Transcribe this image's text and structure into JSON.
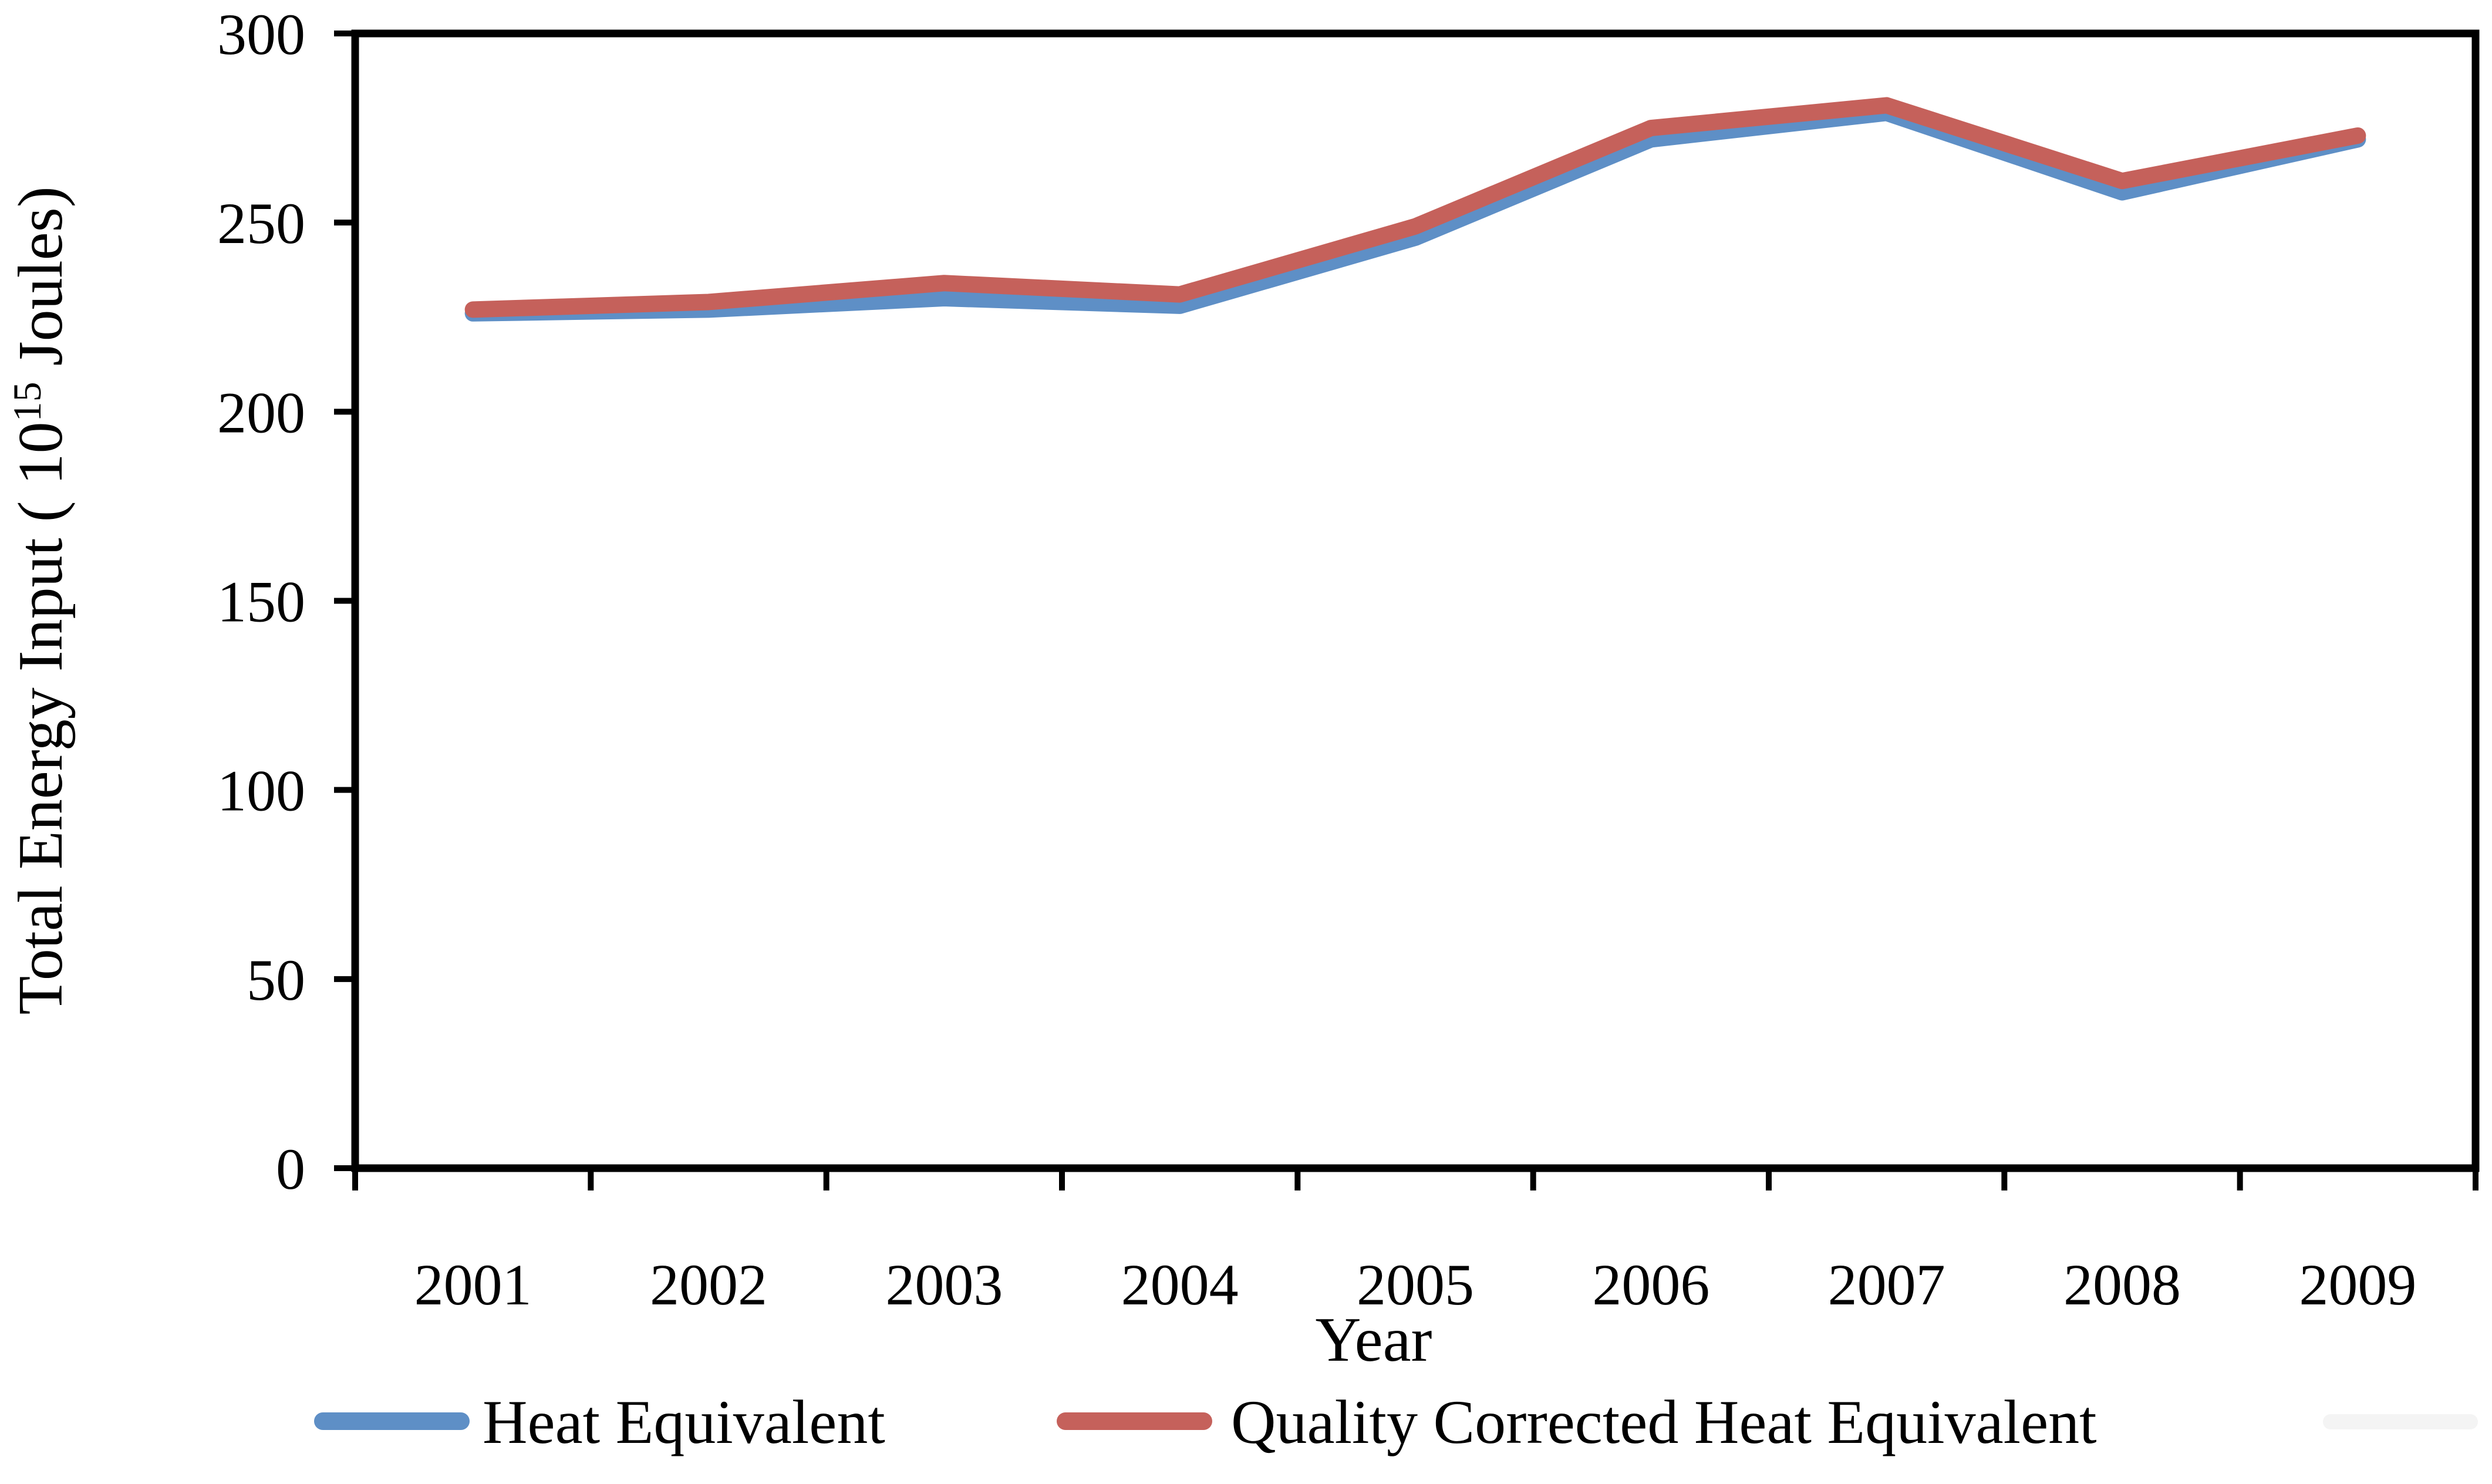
{
  "figure": {
    "background": "#ffffff",
    "decor_pill_color": "#f4f4f4"
  },
  "chart_data": {
    "type": "line",
    "title": "",
    "xlabel": "Year",
    "ylabel_prefix": "Total Energy Input ( 10",
    "ylabel_superscript": "15",
    "ylabel_suffix": " Joules)",
    "categories": [
      "2001",
      "2002",
      "2003",
      "2004",
      "2005",
      "2006",
      "2007",
      "2008",
      "2009"
    ],
    "series": [
      {
        "name": "Heat Equivalent",
        "color": "#5e8fc6",
        "values": [
          226,
          227,
          230,
          228,
          246,
          272,
          279,
          258,
          272
        ]
      },
      {
        "name": "Quality Corrected Heat Equivalent",
        "color": "#c5615b",
        "values": [
          227,
          229,
          234,
          231,
          249,
          275,
          281,
          261,
          273
        ]
      }
    ],
    "ylim": [
      0,
      300
    ],
    "yticks": [
      0,
      50,
      100,
      150,
      200,
      250,
      300
    ],
    "grid": false,
    "legend_position": "bottom",
    "axis_color": "#000000"
  }
}
